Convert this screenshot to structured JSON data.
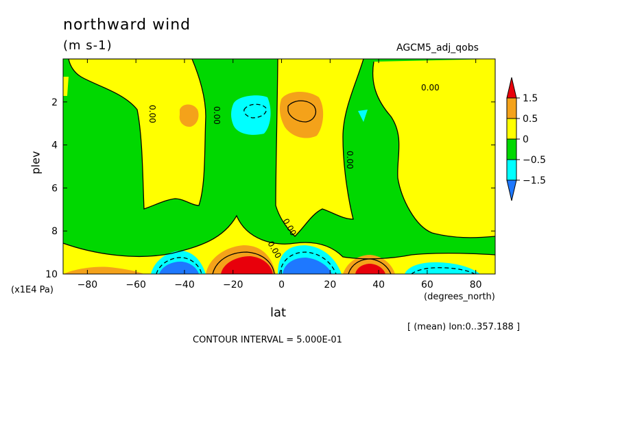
{
  "header": {
    "title": "northward wind",
    "units": "(m s-1)",
    "dataset": "AGCM5_adj_qobs"
  },
  "axes": {
    "ylabel": "plev",
    "yunit": "(x1E4 Pa)",
    "xlabel": "lat",
    "xunit": "(degrees_north)"
  },
  "footer": {
    "mean_note": "[ (mean) lon:0..357.188 ]",
    "contour_interval": "CONTOUR INTERVAL = 5.000E-01"
  },
  "colors": {
    "red": "#e8000b",
    "orange": "#f4a21a",
    "yellow": "#ffff00",
    "green": "#00d800",
    "cyan": "#00ffff",
    "blue": "#1e78ff"
  },
  "chart_data": {
    "type": "contour",
    "title": "northward wind",
    "xlabel": "lat",
    "ylabel": "plev",
    "xlim": [
      -90,
      88
    ],
    "ylim": [
      10,
      0
    ],
    "y_reversed": true,
    "x_ticks": [
      -80,
      -60,
      -40,
      -20,
      0,
      20,
      40,
      60,
      80
    ],
    "y_ticks": [
      2,
      4,
      6,
      8,
      10
    ],
    "contour_interval": 0.5,
    "contour_labels": [
      "0.00"
    ],
    "colorbar": {
      "labels": [
        "1.5",
        "0.5",
        "0",
        "-0.5",
        "-1.5"
      ],
      "bins": [
        {
          "color": "#e8000b",
          "range": "> 1.5"
        },
        {
          "color": "#f4a21a",
          "range": "0.5 to 1.5"
        },
        {
          "color": "#ffff00",
          "range": "0 to 0.5"
        },
        {
          "color": "#00d800",
          "range": "-0.5 to 0"
        },
        {
          "color": "#00ffff",
          "range": "-1.5 to -0.5"
        },
        {
          "color": "#1e78ff",
          "range": "< -1.5"
        }
      ]
    },
    "features": [
      {
        "lat": -10,
        "plev": 9.7,
        "sign": "+",
        "max_bin": "> 1.5"
      },
      {
        "lat": 8,
        "plev": 2.5,
        "sign": "+",
        "max_bin": "0.5 to 1.5"
      },
      {
        "lat": -40,
        "plev": 2.6,
        "sign": "+",
        "max_bin": "0.5 to 1.5"
      },
      {
        "lat": -10,
        "plev": 2.5,
        "sign": "-",
        "max_bin": "-1.5 to -0.5"
      },
      {
        "lat": 38,
        "plev": 9.7,
        "sign": "+",
        "max_bin": "> 1.5"
      },
      {
        "lat": 12,
        "plev": 9.7,
        "sign": "-",
        "max_bin": "< -1.5"
      },
      {
        "lat": -40,
        "plev": 9.8,
        "sign": "-",
        "max_bin": "< -1.5"
      },
      {
        "lat": 65,
        "plev": 9.7,
        "sign": "-",
        "max_bin": "-1.5 to -0.5"
      },
      {
        "lat": -78,
        "plev": 9.8,
        "sign": "+",
        "max_bin": "0.5 to 1.5"
      },
      {
        "lat": 30,
        "plev": 2.6,
        "sign": "-",
        "max_bin": "-1.5 to -0.5"
      }
    ]
  }
}
